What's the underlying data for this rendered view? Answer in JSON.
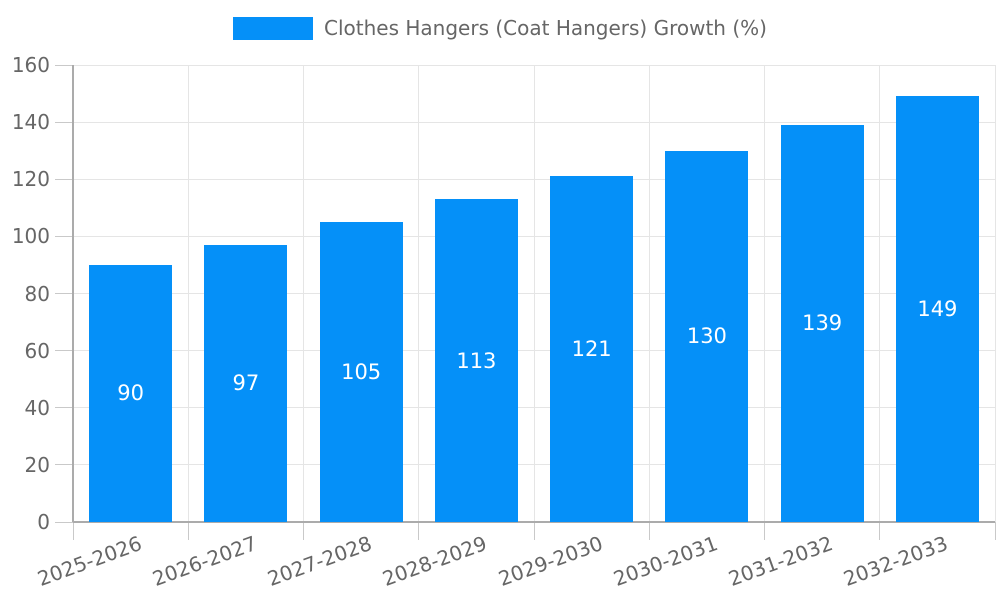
{
  "chart_data": {
    "type": "bar",
    "title": "",
    "legend": {
      "label": "Clothes Hangers (Coat Hangers) Growth (%)",
      "position": "top"
    },
    "categories": [
      "2025-2026",
      "2026-2027",
      "2027-2028",
      "2028-2029",
      "2029-2030",
      "2030-2031",
      "2031-2032",
      "2032-2033"
    ],
    "values": [
      90,
      97,
      105,
      113,
      121,
      130,
      139,
      149
    ],
    "bar_value_labels": [
      "90",
      "97",
      "105",
      "113",
      "121",
      "130",
      "139",
      "149"
    ],
    "xlabel": "",
    "ylabel": "",
    "ylim": [
      0,
      160
    ],
    "yticks": [
      0,
      20,
      40,
      60,
      80,
      100,
      120,
      140,
      160
    ],
    "x_tick_rotation_deg": -20,
    "grid": true,
    "colors": {
      "bar": "#0590f8",
      "grid": "#e5e5e5",
      "axis": "#ababab",
      "tick": "#c9c9c9",
      "text": "#666666",
      "bar_label": "#ffffff",
      "background": "#ffffff"
    }
  }
}
